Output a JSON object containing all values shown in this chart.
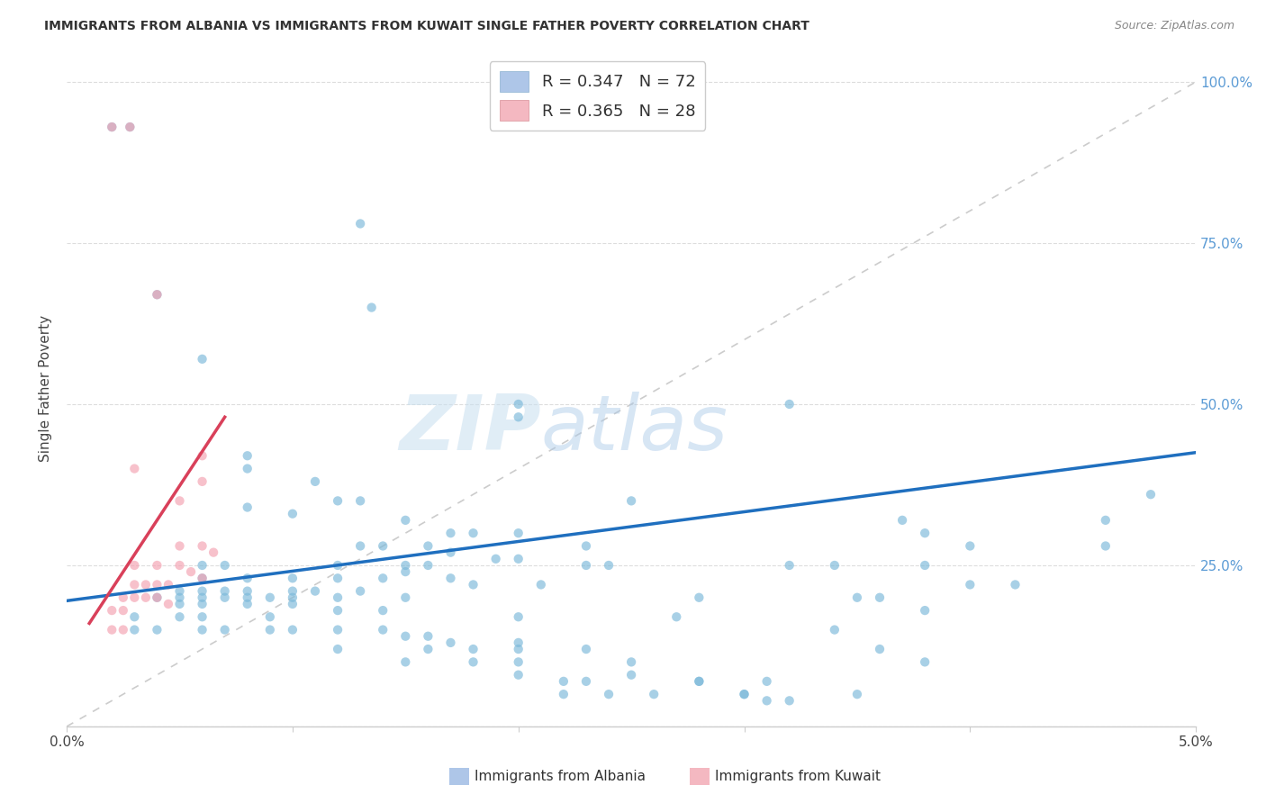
{
  "title": "IMMIGRANTS FROM ALBANIA VS IMMIGRANTS FROM KUWAIT SINGLE FATHER POVERTY CORRELATION CHART",
  "source": "Source: ZipAtlas.com",
  "ylabel": "Single Father Poverty",
  "watermark_zip": "ZIP",
  "watermark_atlas": "atlas",
  "albania_color": "#7ab8d9",
  "kuwait_color": "#f4a0b0",
  "trendline_albania_color": "#1f6fbf",
  "trendline_kuwait_color": "#d9405a",
  "diagonal_color": "#cccccc",
  "albania_points": [
    [
      0.002,
      0.93
    ],
    [
      0.0028,
      0.93
    ],
    [
      0.004,
      0.67
    ],
    [
      0.013,
      0.78
    ],
    [
      0.0135,
      0.65
    ],
    [
      0.006,
      0.57
    ],
    [
      0.02,
      0.5
    ],
    [
      0.02,
      0.48
    ],
    [
      0.032,
      0.5
    ],
    [
      0.008,
      0.42
    ],
    [
      0.008,
      0.4
    ],
    [
      0.011,
      0.38
    ],
    [
      0.012,
      0.35
    ],
    [
      0.013,
      0.35
    ],
    [
      0.025,
      0.35
    ],
    [
      0.008,
      0.34
    ],
    [
      0.01,
      0.33
    ],
    [
      0.015,
      0.32
    ],
    [
      0.017,
      0.3
    ],
    [
      0.018,
      0.3
    ],
    [
      0.02,
      0.3
    ],
    [
      0.013,
      0.28
    ],
    [
      0.014,
      0.28
    ],
    [
      0.016,
      0.28
    ],
    [
      0.023,
      0.28
    ],
    [
      0.017,
      0.27
    ],
    [
      0.019,
      0.26
    ],
    [
      0.02,
      0.26
    ],
    [
      0.006,
      0.25
    ],
    [
      0.007,
      0.25
    ],
    [
      0.012,
      0.25
    ],
    [
      0.015,
      0.25
    ],
    [
      0.016,
      0.25
    ],
    [
      0.023,
      0.25
    ],
    [
      0.024,
      0.25
    ],
    [
      0.015,
      0.24
    ],
    [
      0.006,
      0.23
    ],
    [
      0.008,
      0.23
    ],
    [
      0.01,
      0.23
    ],
    [
      0.012,
      0.23
    ],
    [
      0.014,
      0.23
    ],
    [
      0.017,
      0.23
    ],
    [
      0.018,
      0.22
    ],
    [
      0.021,
      0.22
    ],
    [
      0.005,
      0.21
    ],
    [
      0.006,
      0.21
    ],
    [
      0.007,
      0.21
    ],
    [
      0.008,
      0.21
    ],
    [
      0.01,
      0.21
    ],
    [
      0.011,
      0.21
    ],
    [
      0.013,
      0.21
    ],
    [
      0.004,
      0.2
    ],
    [
      0.005,
      0.2
    ],
    [
      0.006,
      0.2
    ],
    [
      0.007,
      0.2
    ],
    [
      0.008,
      0.2
    ],
    [
      0.009,
      0.2
    ],
    [
      0.01,
      0.2
    ],
    [
      0.012,
      0.2
    ],
    [
      0.015,
      0.2
    ],
    [
      0.028,
      0.2
    ],
    [
      0.005,
      0.19
    ],
    [
      0.006,
      0.19
    ],
    [
      0.008,
      0.19
    ],
    [
      0.01,
      0.19
    ],
    [
      0.012,
      0.18
    ],
    [
      0.014,
      0.18
    ],
    [
      0.003,
      0.17
    ],
    [
      0.005,
      0.17
    ],
    [
      0.006,
      0.17
    ],
    [
      0.009,
      0.17
    ],
    [
      0.02,
      0.17
    ],
    [
      0.027,
      0.17
    ],
    [
      0.003,
      0.15
    ],
    [
      0.004,
      0.15
    ],
    [
      0.006,
      0.15
    ],
    [
      0.007,
      0.15
    ],
    [
      0.009,
      0.15
    ],
    [
      0.01,
      0.15
    ],
    [
      0.012,
      0.15
    ],
    [
      0.014,
      0.15
    ],
    [
      0.015,
      0.14
    ],
    [
      0.016,
      0.14
    ],
    [
      0.017,
      0.13
    ],
    [
      0.02,
      0.13
    ],
    [
      0.012,
      0.12
    ],
    [
      0.016,
      0.12
    ],
    [
      0.018,
      0.12
    ],
    [
      0.02,
      0.12
    ],
    [
      0.023,
      0.12
    ],
    [
      0.015,
      0.1
    ],
    [
      0.018,
      0.1
    ],
    [
      0.02,
      0.1
    ],
    [
      0.025,
      0.1
    ],
    [
      0.02,
      0.08
    ],
    [
      0.022,
      0.07
    ],
    [
      0.023,
      0.07
    ],
    [
      0.028,
      0.07
    ],
    [
      0.031,
      0.07
    ],
    [
      0.022,
      0.05
    ],
    [
      0.024,
      0.05
    ],
    [
      0.026,
      0.05
    ],
    [
      0.03,
      0.05
    ],
    [
      0.031,
      0.04
    ],
    [
      0.032,
      0.04
    ],
    [
      0.048,
      0.36
    ],
    [
      0.037,
      0.32
    ],
    [
      0.046,
      0.32
    ],
    [
      0.038,
      0.3
    ],
    [
      0.04,
      0.28
    ],
    [
      0.046,
      0.28
    ],
    [
      0.032,
      0.25
    ],
    [
      0.034,
      0.25
    ],
    [
      0.038,
      0.25
    ],
    [
      0.04,
      0.22
    ],
    [
      0.042,
      0.22
    ],
    [
      0.035,
      0.2
    ],
    [
      0.036,
      0.2
    ],
    [
      0.038,
      0.18
    ],
    [
      0.034,
      0.15
    ],
    [
      0.036,
      0.12
    ],
    [
      0.038,
      0.1
    ],
    [
      0.025,
      0.08
    ],
    [
      0.028,
      0.07
    ],
    [
      0.03,
      0.05
    ],
    [
      0.035,
      0.05
    ]
  ],
  "kuwait_points": [
    [
      0.002,
      0.93
    ],
    [
      0.0028,
      0.93
    ],
    [
      0.004,
      0.67
    ],
    [
      0.003,
      0.4
    ],
    [
      0.005,
      0.35
    ],
    [
      0.006,
      0.42
    ],
    [
      0.006,
      0.38
    ],
    [
      0.005,
      0.28
    ],
    [
      0.006,
      0.28
    ],
    [
      0.0065,
      0.27
    ],
    [
      0.003,
      0.25
    ],
    [
      0.004,
      0.25
    ],
    [
      0.005,
      0.25
    ],
    [
      0.0055,
      0.24
    ],
    [
      0.006,
      0.23
    ],
    [
      0.003,
      0.22
    ],
    [
      0.0035,
      0.22
    ],
    [
      0.004,
      0.22
    ],
    [
      0.0045,
      0.22
    ],
    [
      0.0025,
      0.2
    ],
    [
      0.003,
      0.2
    ],
    [
      0.0035,
      0.2
    ],
    [
      0.004,
      0.2
    ],
    [
      0.0045,
      0.19
    ],
    [
      0.002,
      0.18
    ],
    [
      0.0025,
      0.18
    ],
    [
      0.002,
      0.15
    ],
    [
      0.0025,
      0.15
    ]
  ],
  "albania_trendline": [
    [
      0.0,
      0.195
    ],
    [
      0.05,
      0.425
    ]
  ],
  "kuwait_trendline": [
    [
      0.001,
      0.16
    ],
    [
      0.007,
      0.48
    ]
  ],
  "xlim": [
    0.0,
    0.05
  ],
  "ylim": [
    0.0,
    1.05
  ],
  "xticks": [
    0.0,
    0.01,
    0.02,
    0.03,
    0.04,
    0.05
  ],
  "xtick_labels": [
    "0.0%",
    "",
    "",
    "",
    "",
    "5.0%"
  ],
  "yticks": [
    0.0,
    0.25,
    0.5,
    0.75,
    1.0
  ],
  "ytick_labels_right": [
    "",
    "25.0%",
    "50.0%",
    "75.0%",
    "100.0%"
  ]
}
